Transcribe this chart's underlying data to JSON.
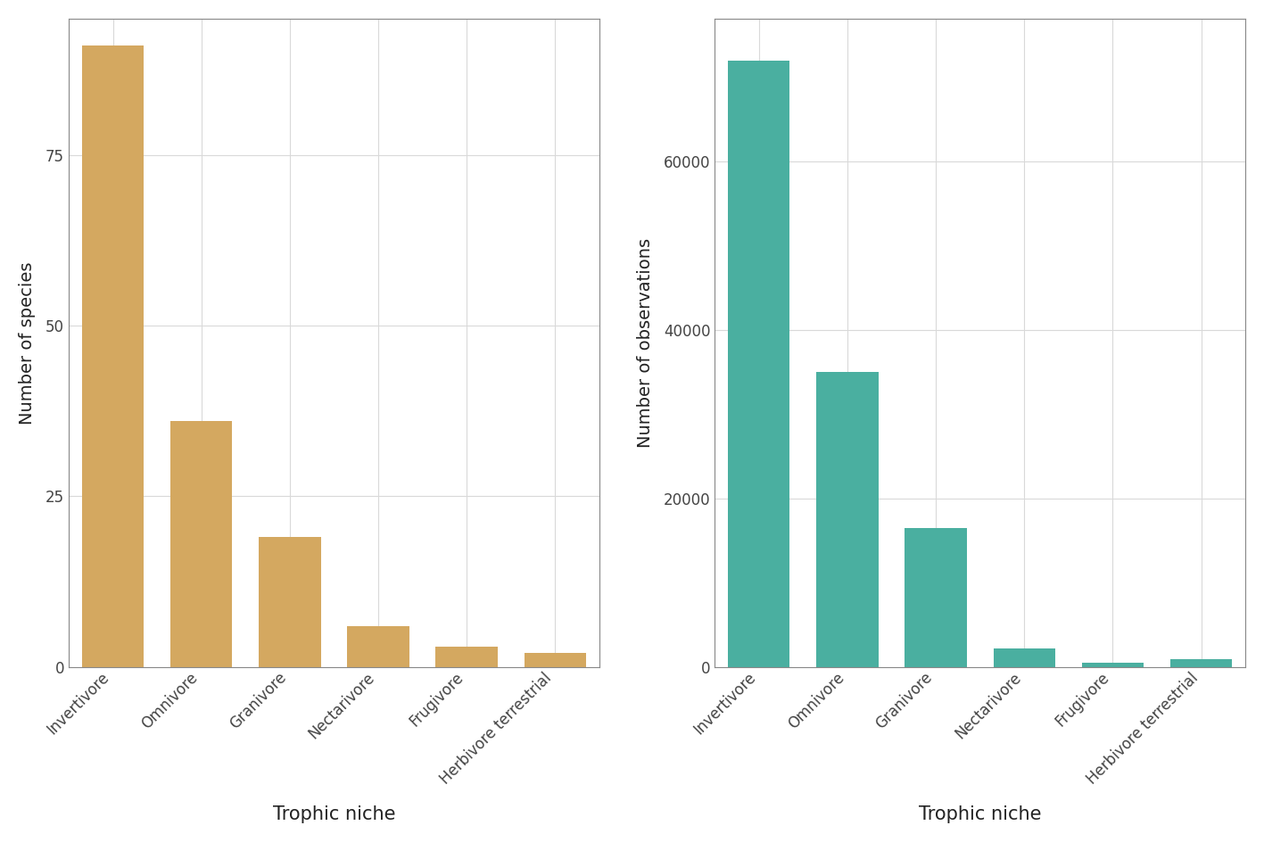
{
  "categories": [
    "Invertivore",
    "Omnivore",
    "Granivore",
    "Nectarivore",
    "Frugivore",
    "Herbivore terrestrial"
  ],
  "species_values": [
    91,
    36,
    19,
    6,
    3,
    2
  ],
  "obs_values": [
    72000,
    35000,
    16500,
    2200,
    500,
    900
  ],
  "bar_color_left": "#D4A860",
  "bar_color_right": "#4AAFA0",
  "ylabel_left": "Number of species",
  "ylabel_right": "Number of observations",
  "xlabel": "Trophic niche",
  "background_color": "#FFFFFF",
  "panel_bg": "#FFFFFF",
  "grid_color": "#D9D9D9",
  "tick_label_color": "#444444",
  "axis_label_color": "#222222",
  "ylim_left": [
    0,
    95
  ],
  "ylim_right": [
    0,
    77000
  ],
  "yticks_left": [
    0,
    25,
    50,
    75
  ],
  "yticks_right": [
    0,
    20000,
    40000,
    60000
  ]
}
